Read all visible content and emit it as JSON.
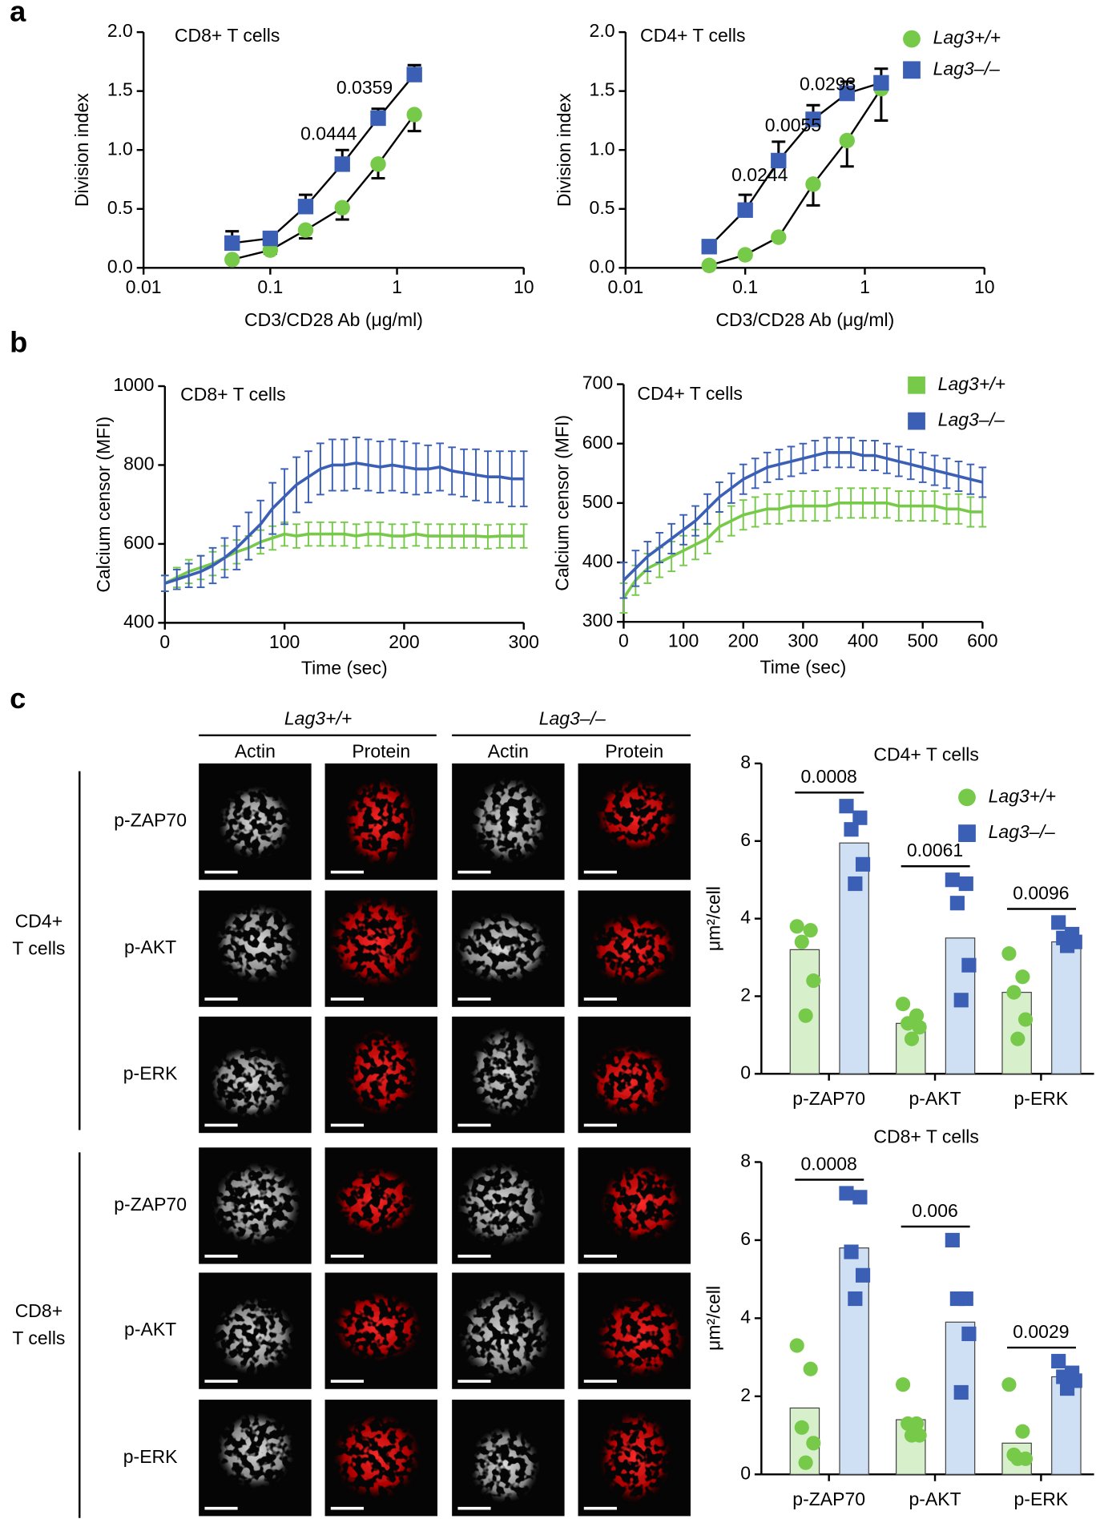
{
  "panel_labels": [
    "a",
    "b",
    "c"
  ],
  "chart_data": [
    {
      "type": "line",
      "title": "CD8+ T cells",
      "xlabel": "CD3/CD28 Ab (μg/ml)",
      "ylabel": "Division index",
      "x": [
        0.05,
        0.1,
        0.19,
        0.37,
        0.71,
        1.37
      ],
      "xscale": "log",
      "xlim": [
        0.01,
        10
      ],
      "xticks": [
        0.01,
        0.1,
        1,
        10
      ],
      "ylim": [
        0,
        2
      ],
      "yticks": [
        {
          "value": 0,
          "label": "0.0"
        },
        0.5,
        {
          "value": 1,
          "label": "1.0"
        },
        1.5,
        {
          "value": 2,
          "label": "2.0"
        }
      ],
      "series": [
        {
          "color": "#77c94a",
          "marker": "circle",
          "error_direction": "down",
          "values": [
            0.07,
            0.15,
            0.32,
            0.51,
            0.88,
            1.3
          ],
          "errors": [
            0.02,
            0.03,
            0.07,
            0.1,
            0.12,
            0.14
          ]
        },
        {
          "color": "#3a5fb5",
          "marker": "square",
          "error_direction": "up",
          "values": [
            0.21,
            0.25,
            0.52,
            0.88,
            1.27,
            1.64
          ],
          "errors": [
            0.1,
            0.05,
            0.1,
            0.12,
            0.08,
            0.08
          ]
        }
      ],
      "annotations": [
        "0.0444",
        "0.0359"
      ]
    },
    {
      "type": "line",
      "title": "CD4+ T cells",
      "xlabel": "CD3/CD28 Ab (μg/ml)",
      "ylabel": "Division index",
      "x": [
        0.05,
        0.1,
        0.19,
        0.37,
        0.71,
        1.37
      ],
      "xscale": "log",
      "xlim": [
        0.01,
        10
      ],
      "xticks": [
        0.01,
        0.1,
        1,
        10
      ],
      "ylim": [
        0,
        2
      ],
      "yticks": [
        {
          "value": 0,
          "label": "0.0"
        },
        0.5,
        {
          "value": 1,
          "label": "1.0"
        },
        1.5,
        {
          "value": 2,
          "label": "2.0"
        }
      ],
      "legend": "top-right",
      "series": [
        {
          "name": "Lag3+/+",
          "color": "#77c94a",
          "marker": "circle",
          "error_direction": "down",
          "values": [
            0.02,
            0.11,
            0.26,
            0.71,
            1.08,
            1.52
          ],
          "errors": [
            0.01,
            0.02,
            0.02,
            0.18,
            0.22,
            0.27
          ]
        },
        {
          "name": "Lag3–/–",
          "color": "#3a5fb5",
          "marker": "square",
          "error_direction": "up",
          "values": [
            0.18,
            0.49,
            0.91,
            1.26,
            1.48,
            1.57
          ],
          "errors": [
            0.05,
            0.13,
            0.16,
            0.12,
            0.1,
            0.12
          ]
        }
      ],
      "annotations": [
        "0.0244",
        "0.0055",
        "0.0293"
      ]
    },
    {
      "type": "line",
      "title": "CD8+ T cells",
      "xlabel": "Time (sec)",
      "ylabel": "Calcium censor (MFI)",
      "x": [
        0,
        10,
        20,
        30,
        40,
        50,
        60,
        70,
        80,
        90,
        100,
        110,
        120,
        130,
        140,
        150,
        160,
        170,
        180,
        190,
        200,
        210,
        220,
        230,
        240,
        250,
        260,
        270,
        280,
        290,
        300
      ],
      "xlim": [
        0,
        300
      ],
      "xticks": [
        0,
        100,
        200,
        300
      ],
      "ylim": [
        400,
        1000
      ],
      "yticks": [
        400,
        600,
        800,
        1000
      ],
      "series": [
        {
          "color": "#77c94a",
          "error_direction": "both",
          "values": [
            500,
            515,
            530,
            540,
            550,
            565,
            580,
            590,
            605,
            615,
            625,
            620,
            625,
            625,
            625,
            625,
            620,
            625,
            625,
            620,
            620,
            625,
            620,
            620,
            620,
            620,
            620,
            618,
            620,
            620,
            620
          ],
          "errors": [
            20,
            25,
            30,
            30,
            30,
            30,
            30,
            30,
            30,
            30,
            30,
            30,
            30,
            30,
            30,
            30,
            30,
            30,
            30,
            30,
            30,
            30,
            30,
            30,
            30,
            30,
            30,
            30,
            30,
            30,
            30
          ]
        },
        {
          "color": "#3a5fb5",
          "error_direction": "both",
          "values": [
            500,
            510,
            520,
            530,
            545,
            565,
            590,
            620,
            650,
            690,
            720,
            750,
            770,
            790,
            800,
            800,
            805,
            800,
            795,
            800,
            795,
            790,
            790,
            795,
            785,
            780,
            775,
            770,
            770,
            765,
            765
          ],
          "errors": [
            20,
            25,
            30,
            40,
            45,
            50,
            55,
            60,
            60,
            65,
            70,
            70,
            65,
            65,
            65,
            65,
            65,
            65,
            65,
            65,
            65,
            65,
            60,
            60,
            60,
            60,
            65,
            65,
            65,
            70,
            70
          ]
        }
      ]
    },
    {
      "type": "line",
      "title": "CD4+ T cells",
      "xlabel": "Time (sec)",
      "ylabel": "Calcium censor (MFI)",
      "x": [
        0,
        20,
        40,
        60,
        80,
        100,
        120,
        140,
        160,
        180,
        200,
        220,
        240,
        260,
        280,
        300,
        320,
        340,
        360,
        380,
        400,
        420,
        440,
        460,
        480,
        500,
        520,
        540,
        560,
        580,
        600
      ],
      "xlim": [
        0,
        600
      ],
      "xticks": [
        0,
        100,
        200,
        300,
        400,
        500,
        600
      ],
      "ylim": [
        300,
        700
      ],
      "yticks": [
        300,
        400,
        500,
        600,
        700
      ],
      "legend": "top-right",
      "series": [
        {
          "name": "Lag3+/+",
          "color": "#77c94a",
          "error_direction": "both",
          "values": [
            340,
            370,
            390,
            400,
            410,
            420,
            430,
            440,
            460,
            470,
            480,
            485,
            490,
            490,
            495,
            495,
            495,
            495,
            500,
            500,
            500,
            500,
            500,
            495,
            495,
            495,
            495,
            490,
            490,
            485,
            485
          ],
          "errors": [
            25,
            25,
            25,
            25,
            25,
            25,
            25,
            25,
            25,
            25,
            25,
            25,
            25,
            25,
            25,
            25,
            25,
            25,
            25,
            25,
            25,
            25,
            25,
            25,
            25,
            25,
            25,
            25,
            25,
            25,
            25
          ]
        },
        {
          "name": "Lag3–/–",
          "color": "#3a5fb5",
          "error_direction": "both",
          "values": [
            370,
            390,
            410,
            425,
            440,
            455,
            470,
            490,
            510,
            525,
            540,
            550,
            560,
            565,
            570,
            575,
            580,
            585,
            585,
            585,
            580,
            580,
            575,
            570,
            565,
            560,
            555,
            550,
            545,
            540,
            535
          ],
          "errors": [
            30,
            30,
            25,
            25,
            25,
            25,
            25,
            25,
            25,
            25,
            25,
            25,
            25,
            25,
            25,
            25,
            25,
            25,
            25,
            25,
            25,
            25,
            25,
            25,
            25,
            25,
            25,
            25,
            25,
            25,
            25
          ]
        }
      ]
    },
    {
      "type": "bar",
      "title": "CD4+ T cells",
      "ylabel": "μm²/cell",
      "categories": [
        "p-ZAP70",
        "p-AKT",
        "p-ERK"
      ],
      "ylim": [
        0,
        8
      ],
      "yticks": [
        0,
        2,
        4,
        6,
        8
      ],
      "legend": "top-right",
      "series": [
        {
          "name": "Lag3+/+",
          "color": "#77c94a",
          "bar_color": "#d8efcc",
          "marker": "circle",
          "values": [
            3.2,
            1.3,
            2.1
          ],
          "points": [
            [
              3.8,
              3.7,
              3.4,
              2.4,
              1.5
            ],
            [
              1.8,
              1.5,
              1.3,
              1.2,
              0.9
            ],
            [
              3.1,
              2.5,
              2.1,
              1.4,
              0.9
            ]
          ]
        },
        {
          "name": "Lag3–/–",
          "color": "#3a5fb5",
          "bar_color": "#cfe0f5",
          "marker": "square",
          "values": [
            5.95,
            3.5,
            3.4
          ],
          "points": [
            [
              6.9,
              6.6,
              6.3,
              5.4,
              4.9
            ],
            [
              5.0,
              4.9,
              4.4,
              2.8,
              1.9
            ],
            [
              3.9,
              3.6,
              3.5,
              3.4,
              3.3
            ]
          ]
        }
      ],
      "annotations": [
        "0.0008",
        "0.0061",
        "0.0096"
      ]
    },
    {
      "type": "bar",
      "title": "CD8+ T cells",
      "ylabel": "μm²/cell",
      "categories": [
        "p-ZAP70",
        "p-AKT",
        "p-ERK"
      ],
      "ylim": [
        0,
        8
      ],
      "yticks": [
        0,
        2,
        4,
        6,
        8
      ],
      "series": [
        {
          "color": "#77c94a",
          "bar_color": "#d8efcc",
          "marker": "circle",
          "values": [
            1.7,
            1.4,
            0.8
          ],
          "points": [
            [
              3.3,
              2.7,
              1.2,
              0.8,
              0.3
            ],
            [
              2.3,
              1.3,
              1.3,
              1.0,
              1.0
            ],
            [
              2.3,
              1.1,
              0.5,
              0.4,
              0.4
            ]
          ]
        },
        {
          "color": "#3a5fb5",
          "bar_color": "#cfe0f5",
          "marker": "square",
          "values": [
            5.8,
            3.9,
            2.5
          ],
          "points": [
            [
              7.2,
              7.1,
              5.7,
              5.1,
              4.5
            ],
            [
              6.0,
              4.5,
              4.5,
              3.6,
              2.1
            ],
            [
              2.9,
              2.6,
              2.5,
              2.4,
              2.2
            ]
          ]
        }
      ],
      "annotations": [
        "0.0008",
        "0.006",
        "0.0029"
      ]
    }
  ],
  "micrographs": {
    "genotypes": [
      "Lag3+/+",
      "Lag3–/–"
    ],
    "channels": [
      "Actin",
      "Protein"
    ],
    "cell_types": [
      [
        "CD4+",
        "T cells"
      ],
      [
        "CD8+",
        "T cells"
      ]
    ],
    "rows": [
      "p-ZAP70",
      "p-AKT",
      "p-ERK",
      "p-ZAP70",
      "p-AKT",
      "p-ERK"
    ]
  }
}
